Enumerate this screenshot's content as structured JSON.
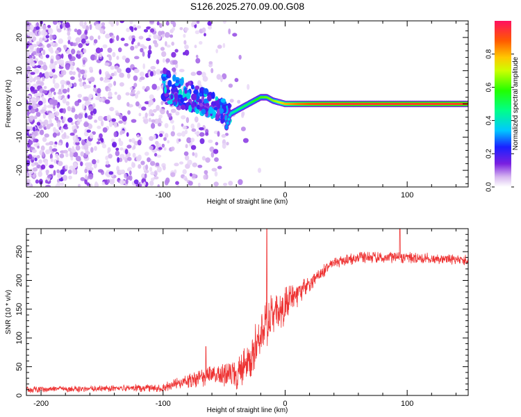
{
  "title": "S126.2025.270.09.00.G08",
  "chart_data": [
    {
      "type": "heatmap",
      "name": "spectrogram",
      "xlabel": "Height of straight line (km)",
      "ylabel": "Frequency (Hz)",
      "xlim": [
        -212,
        150
      ],
      "ylim": [
        -25,
        25
      ],
      "x_ticks": [
        -200,
        -100,
        0,
        100
      ],
      "y_ticks": [
        -20,
        -10,
        0,
        10,
        20
      ],
      "x_tick_labels": [
        "-200",
        "-100",
        "0",
        "100"
      ],
      "y_tick_labels": [
        "-20",
        "-10",
        "0",
        "10",
        "20"
      ],
      "colorbar": {
        "label": "Normalized spectral amplitude",
        "range": [
          0,
          1
        ],
        "ticks": [
          0.0,
          0.2,
          0.4,
          0.6,
          0.8
        ],
        "tick_labels": [
          "0.0",
          "0.2",
          "0.4",
          "0.6",
          "0.8"
        ]
      },
      "ridge": {
        "x_km": [
          -48,
          -45,
          -40,
          -35,
          -30,
          -25,
          -20,
          -15,
          -10,
          -5,
          0,
          10,
          20,
          30,
          50,
          100,
          150
        ],
        "freq_hz": [
          -7,
          -3,
          -2,
          -1,
          0,
          1,
          2,
          2,
          1,
          0.5,
          0,
          0,
          0,
          0,
          0,
          0,
          0
        ],
        "amplitude": [
          0.3,
          0.4,
          0.45,
          0.5,
          0.5,
          0.55,
          0.6,
          0.62,
          0.65,
          0.7,
          0.8,
          0.85,
          0.88,
          0.9,
          0.92,
          0.92,
          0.92
        ]
      },
      "noise_region_x_km": [
        -212,
        -40
      ],
      "cluster": {
        "x_km": [
          -100,
          -45
        ],
        "freq_hz": [
          -8,
          10
        ]
      }
    },
    {
      "type": "line",
      "name": "snr",
      "xlabel": "Height of straight line (km)",
      "ylabel": "SNR (10 * v/v)",
      "xlim": [
        -212,
        150
      ],
      "ylim": [
        0,
        290
      ],
      "x_ticks": [
        -200,
        -100,
        0,
        100
      ],
      "y_ticks": [
        0,
        50,
        100,
        150,
        200,
        250
      ],
      "x_tick_labels": [
        "-200",
        "-100",
        "0",
        "100"
      ],
      "y_tick_labels": [
        "0",
        "50",
        "100",
        "150",
        "200",
        "250"
      ],
      "color": "#ee3333",
      "envelope": {
        "x_km": [
          -212,
          -140,
          -100,
          -80,
          -60,
          -40,
          -30,
          -20,
          -10,
          0,
          10,
          20,
          30,
          40,
          60,
          100,
          150
        ],
        "snr_mean": [
          10,
          12,
          14,
          25,
          35,
          35,
          60,
          110,
          140,
          155,
          175,
          195,
          215,
          230,
          240,
          240,
          235
        ],
        "snr_spread": [
          6,
          6,
          8,
          12,
          20,
          25,
          35,
          45,
          40,
          35,
          25,
          15,
          12,
          10,
          10,
          10,
          10
        ]
      },
      "spikes": [
        {
          "x_km": -15,
          "snr": 290
        },
        {
          "x_km": 94,
          "snr": 290
        },
        {
          "x_km": -65,
          "snr": 85
        }
      ]
    }
  ]
}
